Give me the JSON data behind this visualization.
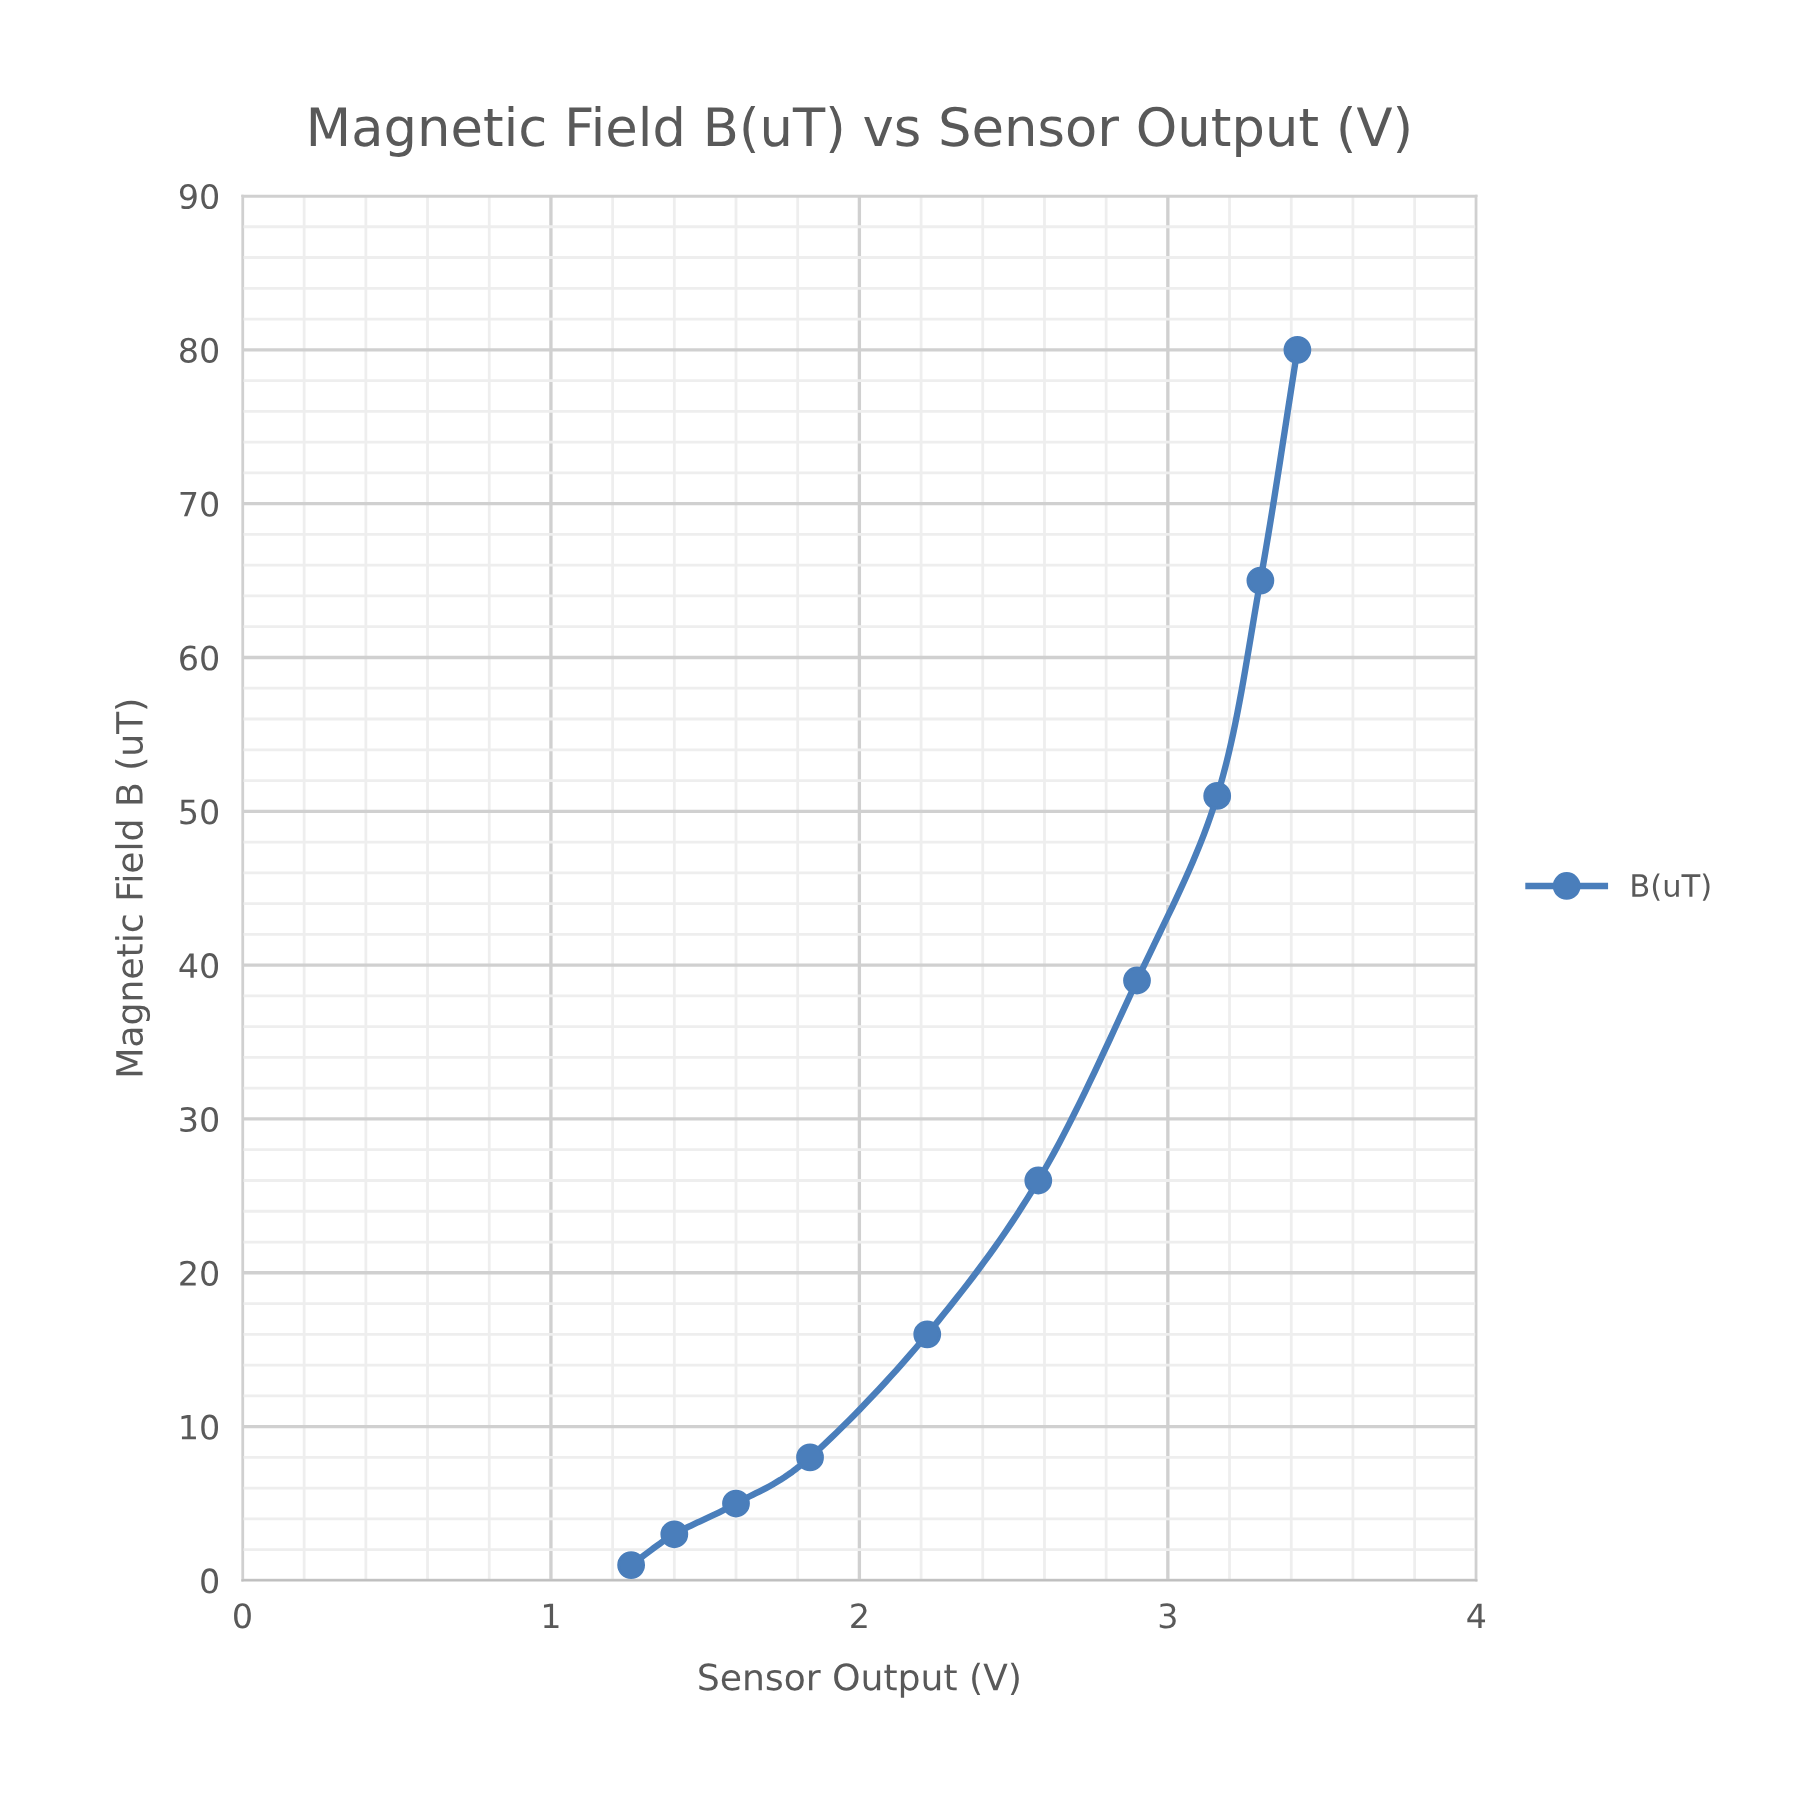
{
  "chart_data": {
    "type": "line",
    "title": "Magnetic Field B(uT) vs Sensor Output (V)",
    "xlabel": "Sensor Output (V)",
    "ylabel": "Magnetic Field B (uT)",
    "x": [
      1.26,
      1.4,
      1.6,
      1.84,
      2.22,
      2.58,
      2.9,
      3.16,
      3.3,
      3.42
    ],
    "series": [
      {
        "name": "B(uT)",
        "color": "#4a7ebb",
        "values": [
          1,
          3,
          5,
          8,
          16,
          26,
          39,
          51,
          65,
          80
        ]
      }
    ],
    "xlim": [
      0,
      4
    ],
    "xticks": [
      0,
      1,
      2,
      3,
      4
    ],
    "ylim": [
      0,
      90
    ],
    "yticks": [
      0,
      10,
      20,
      30,
      40,
      50,
      60,
      70,
      80,
      90
    ],
    "grid": true,
    "legend": "right",
    "marker": "circle",
    "line_style": "solid"
  }
}
